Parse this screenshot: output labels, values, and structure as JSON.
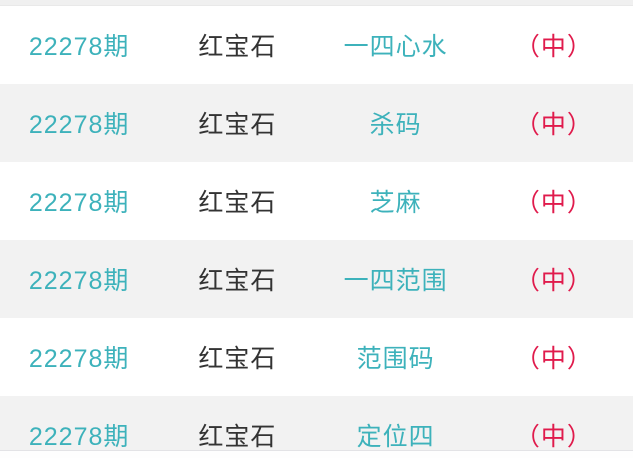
{
  "colors": {
    "accent_teal": "#3db2bb",
    "result_red": "#e01b4c",
    "stripe_gray": "#f2f2f2",
    "text_dark": "#333333"
  },
  "rows": [
    {
      "issue": "22278期",
      "source": "红宝石",
      "category": "一四心水",
      "result": "（中）"
    },
    {
      "issue": "22278期",
      "source": "红宝石",
      "category": "杀码",
      "result": "（中）"
    },
    {
      "issue": "22278期",
      "source": "红宝石",
      "category": "芝麻",
      "result": "（中）"
    },
    {
      "issue": "22278期",
      "source": "红宝石",
      "category": "一四范围",
      "result": "（中）"
    },
    {
      "issue": "22278期",
      "source": "红宝石",
      "category": "范围码",
      "result": "（中）"
    },
    {
      "issue": "22278期",
      "source": "红宝石",
      "category": "定位四",
      "result": "（中）"
    }
  ]
}
